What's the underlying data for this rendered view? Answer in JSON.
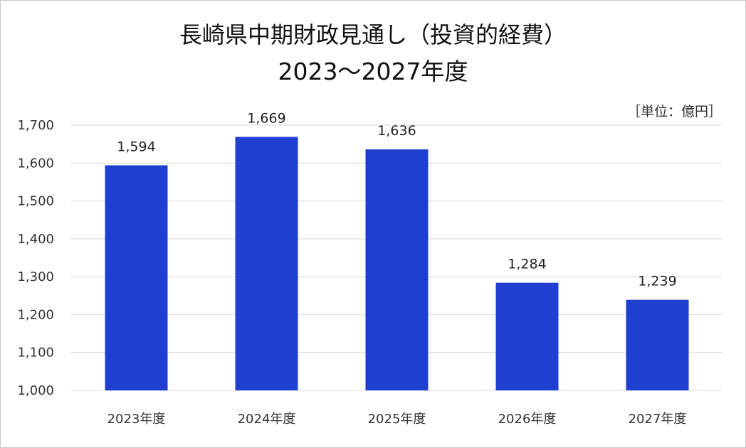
{
  "chart_data": {
    "type": "bar",
    "title": "長崎県中期財政見通し（投資的経費）",
    "subtitle": "2023～2027年度",
    "unit_label": "［単位：億円］",
    "categories": [
      "2023年度",
      "2024年度",
      "2025年度",
      "2026年度",
      "2027年度"
    ],
    "values": [
      1594,
      1669,
      1636,
      1284,
      1239
    ],
    "value_labels": [
      "1,594",
      "1,669",
      "1,636",
      "1,284",
      "1,239"
    ],
    "ylim": [
      1000,
      1700
    ],
    "yticks": [
      1000,
      1100,
      1200,
      1300,
      1400,
      1500,
      1600,
      1700
    ],
    "ytick_labels": [
      "1,000",
      "1,100",
      "1,200",
      "1,300",
      "1,400",
      "1,500",
      "1,600",
      "1,700"
    ],
    "grid": true,
    "bar_color": "#1f3fd0"
  }
}
